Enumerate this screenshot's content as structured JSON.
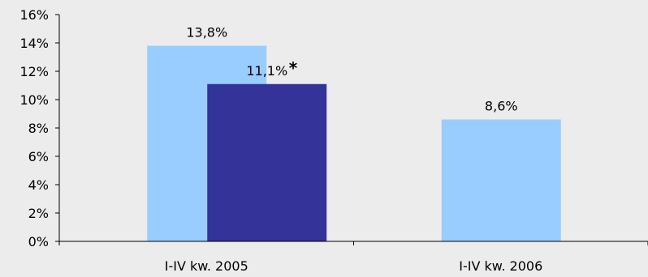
{
  "colors": {
    "background": "#ececec",
    "light_bar": "#99ccff",
    "dark_bar": "#333399",
    "axis": "#000000"
  },
  "chart_data": {
    "type": "bar",
    "categories": [
      "I-IV kw. 2005",
      "I-IV kw. 2006"
    ],
    "series": [
      {
        "values": [
          13.8,
          8.6
        ],
        "labels": [
          "13,8%",
          "8,6%"
        ],
        "color": "#99ccff"
      },
      {
        "values": [
          11.1,
          null
        ],
        "labels": [
          "11,1%",
          ""
        ],
        "color": "#333399"
      }
    ],
    "annotation": "*",
    "ylim": [
      0,
      16
    ],
    "yticks": [
      "0%",
      "2%",
      "4%",
      "6%",
      "8%",
      "10%",
      "12%",
      "14%",
      "16%"
    ],
    "ytick_values": [
      0,
      2,
      4,
      6,
      8,
      10,
      12,
      14,
      16
    ],
    "grid": false,
    "legend": "none"
  }
}
